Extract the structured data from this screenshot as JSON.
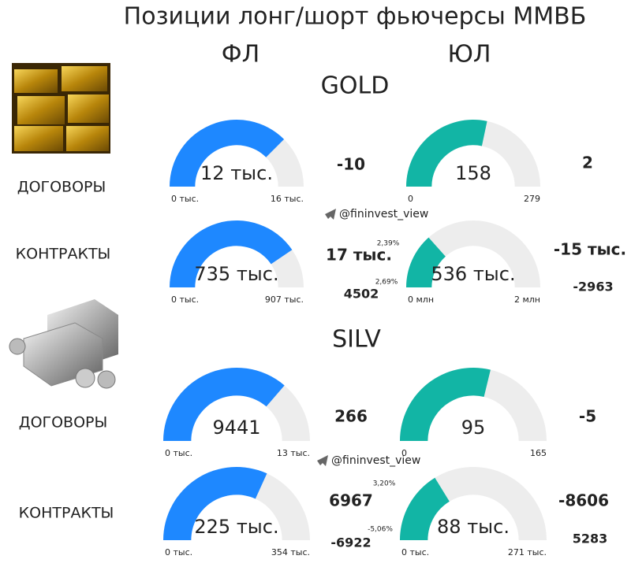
{
  "title": "Позиции лонг/шорт фьючерсы ММВБ",
  "columns": [
    "ФЛ",
    "ЮЛ"
  ],
  "sections": [
    {
      "name": "GOLD",
      "rows": [
        "ДОГОВОРЫ",
        "КОНТРАКТЫ"
      ]
    },
    {
      "name": "SILV",
      "rows": [
        "ДОГОВОРЫ",
        "КОНТРАКТЫ"
      ]
    }
  ],
  "watermarks": [
    "@fininvest_view",
    "@fininvest_view"
  ],
  "chart_data": [
    {
      "type": "gauge",
      "color": "#1e88ff",
      "value": 12000,
      "value_label": "12 тыс.",
      "ticks": [
        {
          "value": 0,
          "label": "0 тыс."
        },
        {
          "value": 16000,
          "label": "16 тыс."
        }
      ],
      "annotations": {
        "delta": "-10"
      }
    },
    {
      "type": "gauge",
      "color": "#12b5a5",
      "value": 158,
      "ticks": [
        0,
        279
      ],
      "annotations": {
        "delta": "2"
      }
    },
    {
      "type": "gauge",
      "color": "#1e88ff",
      "value": 735000,
      "value_label": "735 тыс.",
      "ticks": [
        {
          "value": 0,
          "label": "0 тыс."
        },
        {
          "value": 907000,
          "label": "907 тыс."
        }
      ],
      "annotations": {
        "delta": "17 тыс.",
        "delta_pct": "2,39%",
        "second_pct": "2,69%",
        "second": "4502"
      }
    },
    {
      "type": "gauge",
      "color": "#12b5a5",
      "value": 536000,
      "value_label": "536 тыс.",
      "ticks": [
        {
          "value": 0,
          "label": "0 млн"
        },
        {
          "value": 2000000,
          "label": "2 млн"
        }
      ],
      "annotations": {
        "delta": "-15 тыс.",
        "second": "-2963"
      }
    },
    {
      "type": "gauge",
      "color": "#1e88ff",
      "value": 9441,
      "ticks": [
        {
          "value": 0,
          "label": "0 тыс."
        },
        {
          "value": 13000,
          "label": "13 тыс."
        }
      ],
      "annotations": {
        "delta": "266"
      }
    },
    {
      "type": "gauge",
      "color": "#12b5a5",
      "value": 95,
      "ticks": [
        0,
        165
      ],
      "annotations": {
        "delta": "-5"
      }
    },
    {
      "type": "gauge",
      "color": "#1e88ff",
      "value": 225000,
      "value_label": "225 тыс.",
      "ticks": [
        {
          "value": 0,
          "label": "0 тыс."
        },
        {
          "value": 354000,
          "label": "354 тыс."
        }
      ],
      "annotations": {
        "delta": "6967",
        "delta_pct": "3,20%",
        "second_pct": "-5,06%",
        "second": "-6922"
      }
    },
    {
      "type": "gauge",
      "color": "#12b5a5",
      "value": 88000,
      "value_label": "88 тыс.",
      "ticks": [
        {
          "value": 0,
          "label": "0 тыс."
        },
        {
          "value": 271000,
          "label": "271 тыс."
        }
      ],
      "annotations": {
        "delta": "-8606",
        "second": "5283"
      }
    }
  ]
}
